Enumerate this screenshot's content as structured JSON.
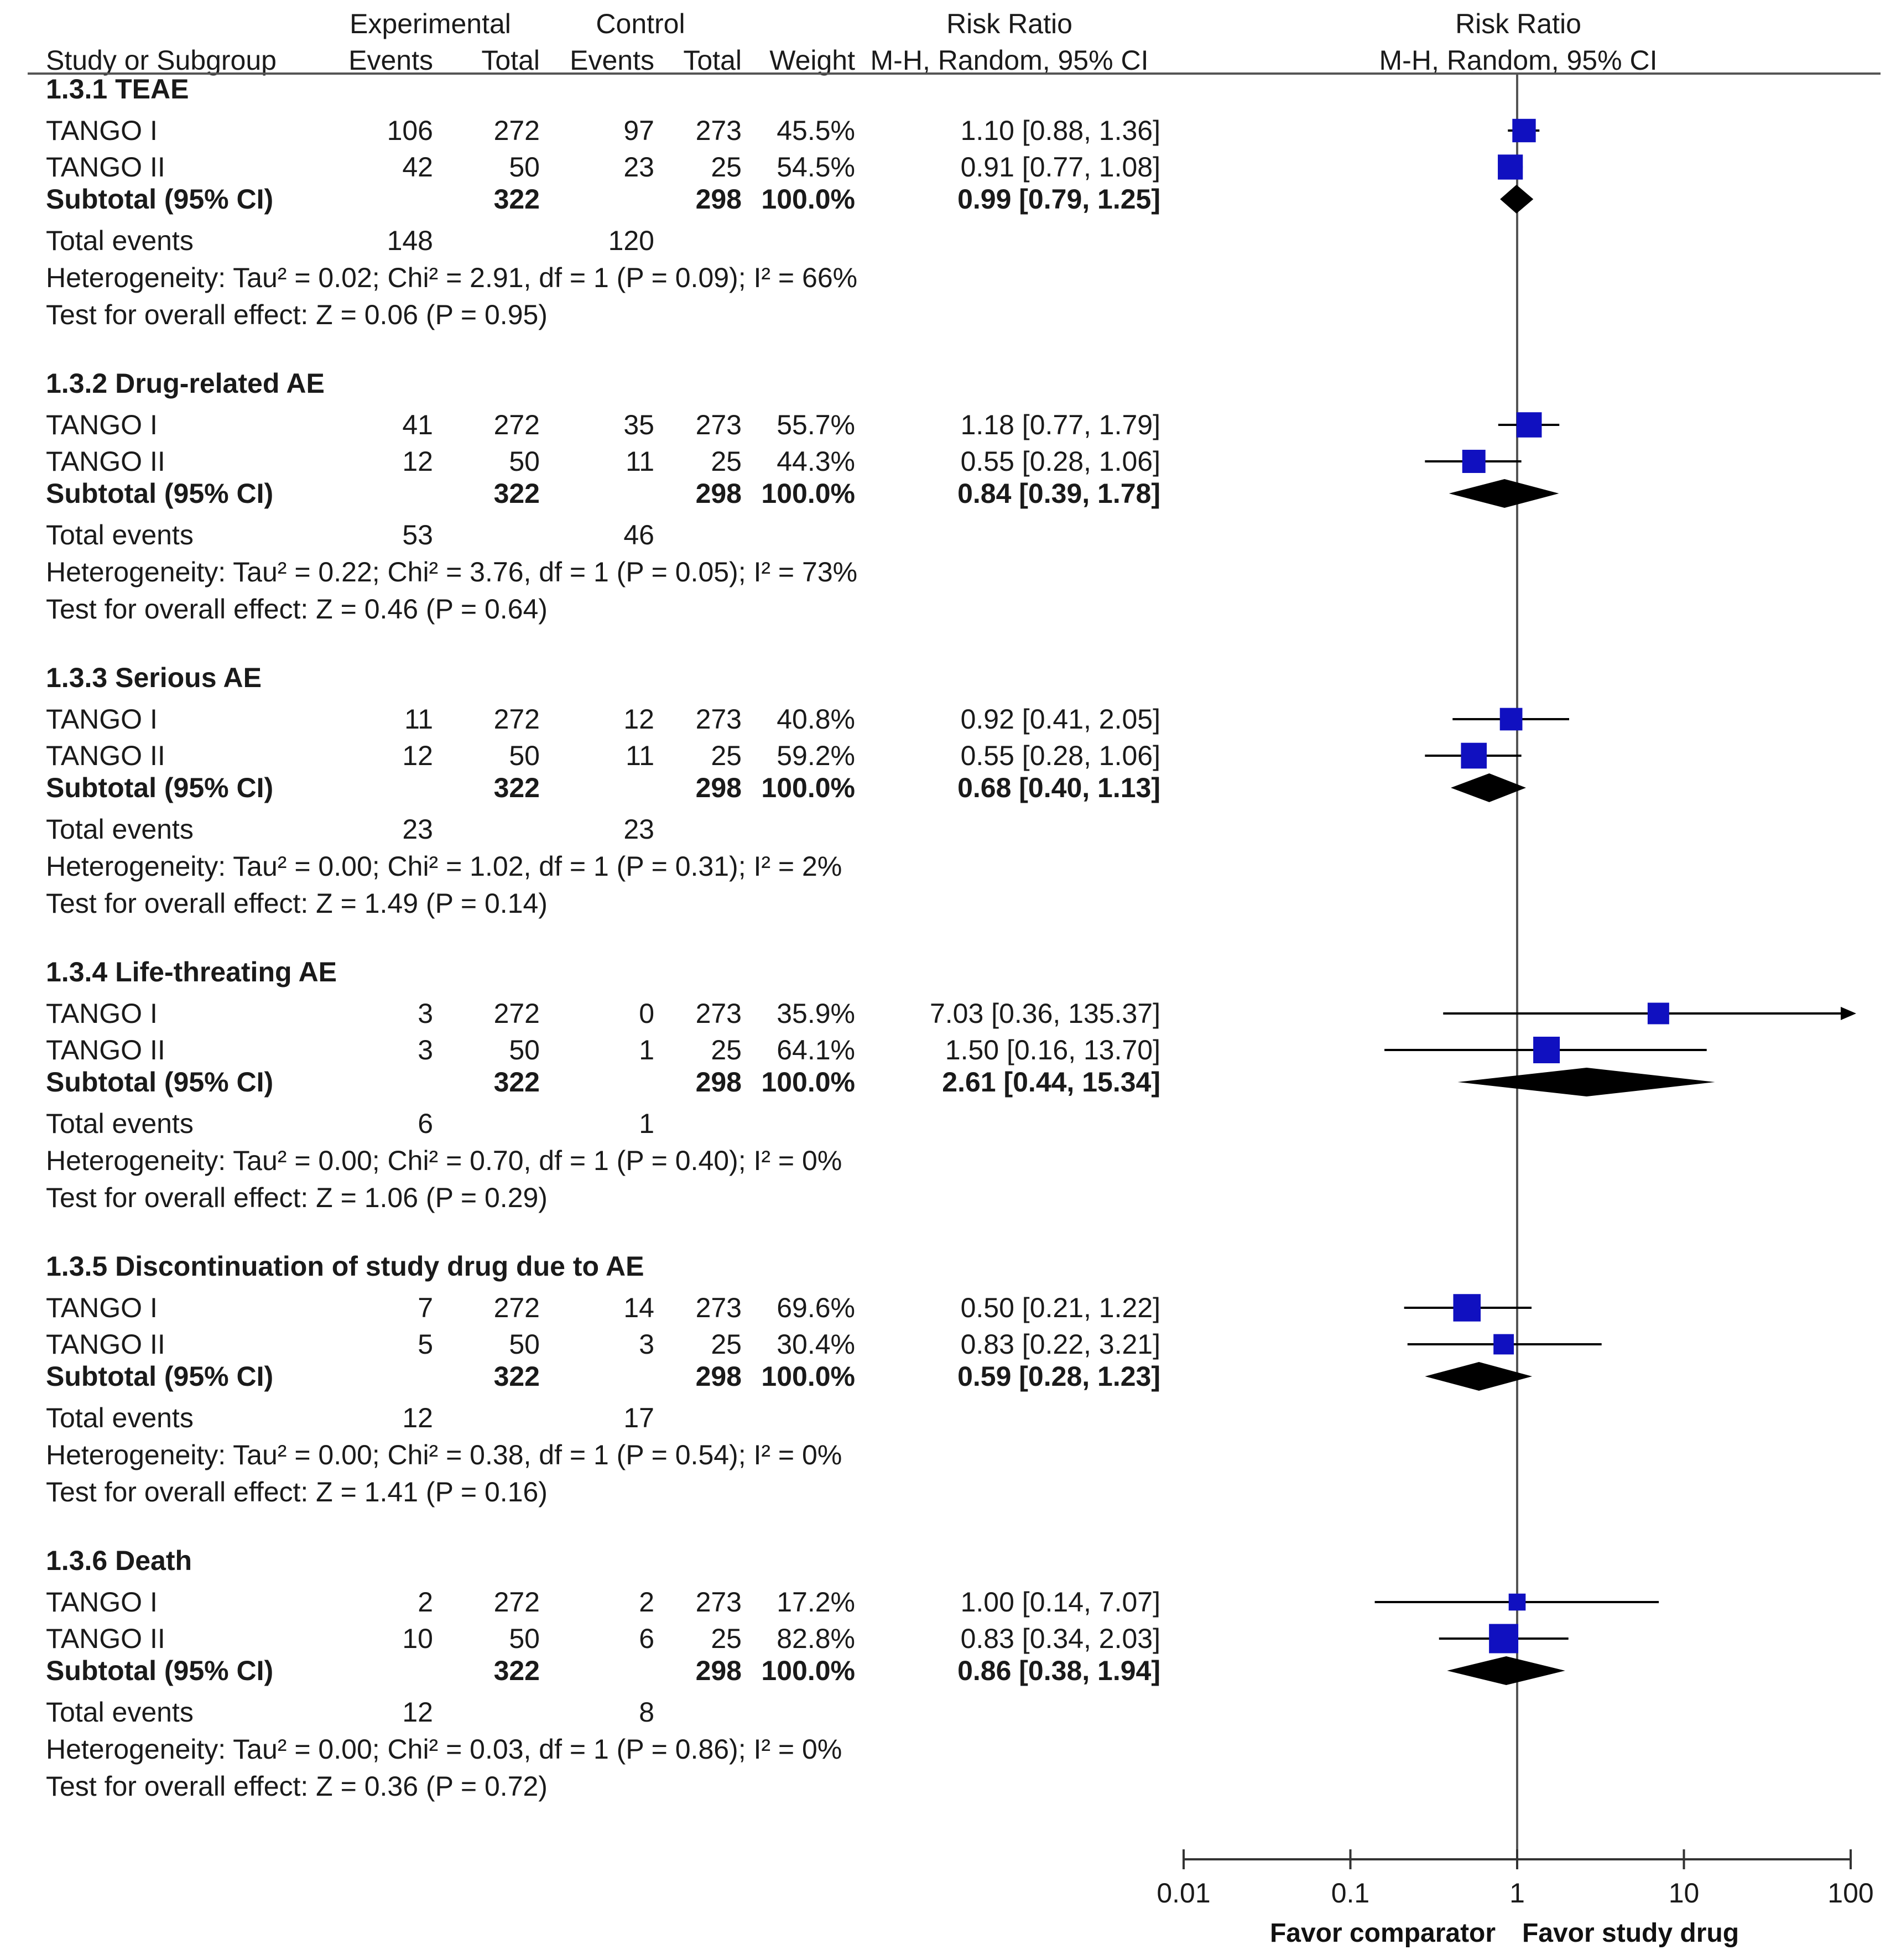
{
  "headers": {
    "experimental": "Experimental",
    "control": "Control",
    "risk_ratio_table": "Risk Ratio",
    "risk_ratio_plot": "Risk Ratio",
    "study_or_subgroup": "Study or Subgroup",
    "events_exp": "Events",
    "total_exp": "Total",
    "events_ctl": "Events",
    "total_ctl": "Total",
    "weight": "Weight",
    "method_table": "M-H, Random, 95% CI",
    "method_plot": "M-H, Random, 95% CI"
  },
  "groups": [
    {
      "title": "1.3.1 TEAE",
      "studies": [
        {
          "name": "TANGO I",
          "exp_events": "106",
          "exp_total": "272",
          "ctl_events": "97",
          "ctl_total": "273",
          "weight": "45.5%",
          "ci_text": "1.10 [0.88, 1.36]"
        },
        {
          "name": "TANGO II",
          "exp_events": "42",
          "exp_total": "50",
          "ctl_events": "23",
          "ctl_total": "25",
          "weight": "54.5%",
          "ci_text": "0.91 [0.77, 1.08]"
        }
      ],
      "subtotal": {
        "label": "Subtotal (95% CI)",
        "exp_total": "322",
        "ctl_total": "298",
        "weight": "100.0%",
        "ci_text": "0.99 [0.79, 1.25]"
      },
      "total_events": {
        "label": "Total events",
        "exp": "148",
        "ctl": "120"
      },
      "heterogeneity": "Heterogeneity: Tau² = 0.02; Chi² = 2.91, df = 1 (P = 0.09); I² = 66%",
      "overall": "Test for overall effect: Z = 0.06 (P = 0.95)"
    },
    {
      "title": "1.3.2 Drug-related AE",
      "studies": [
        {
          "name": "TANGO I",
          "exp_events": "41",
          "exp_total": "272",
          "ctl_events": "35",
          "ctl_total": "273",
          "weight": "55.7%",
          "ci_text": "1.18 [0.77, 1.79]"
        },
        {
          "name": "TANGO II",
          "exp_events": "12",
          "exp_total": "50",
          "ctl_events": "11",
          "ctl_total": "25",
          "weight": "44.3%",
          "ci_text": "0.55 [0.28, 1.06]"
        }
      ],
      "subtotal": {
        "label": "Subtotal (95% CI)",
        "exp_total": "322",
        "ctl_total": "298",
        "weight": "100.0%",
        "ci_text": "0.84 [0.39, 1.78]"
      },
      "total_events": {
        "label": "Total events",
        "exp": "53",
        "ctl": "46"
      },
      "heterogeneity": "Heterogeneity: Tau² = 0.22; Chi² = 3.76, df = 1 (P = 0.05); I² = 73%",
      "overall": "Test for overall effect: Z = 0.46 (P = 0.64)"
    },
    {
      "title": "1.3.3 Serious AE",
      "studies": [
        {
          "name": "TANGO I",
          "exp_events": "11",
          "exp_total": "272",
          "ctl_events": "12",
          "ctl_total": "273",
          "weight": "40.8%",
          "ci_text": "0.92 [0.41, 2.05]"
        },
        {
          "name": "TANGO II",
          "exp_events": "12",
          "exp_total": "50",
          "ctl_events": "11",
          "ctl_total": "25",
          "weight": "59.2%",
          "ci_text": "0.55 [0.28, 1.06]"
        }
      ],
      "subtotal": {
        "label": "Subtotal (95% CI)",
        "exp_total": "322",
        "ctl_total": "298",
        "weight": "100.0%",
        "ci_text": "0.68 [0.40, 1.13]"
      },
      "total_events": {
        "label": "Total events",
        "exp": "23",
        "ctl": "23"
      },
      "heterogeneity": "Heterogeneity: Tau² = 0.00; Chi² = 1.02, df = 1 (P = 0.31); I² = 2%",
      "overall": "Test for overall effect: Z = 1.49 (P = 0.14)"
    },
    {
      "title": "1.3.4 Life-threating AE",
      "studies": [
        {
          "name": "TANGO I",
          "exp_events": "3",
          "exp_total": "272",
          "ctl_events": "0",
          "ctl_total": "273",
          "weight": "35.9%",
          "ci_text": "7.03 [0.36, 135.37]"
        },
        {
          "name": "TANGO II",
          "exp_events": "3",
          "exp_total": "50",
          "ctl_events": "1",
          "ctl_total": "25",
          "weight": "64.1%",
          "ci_text": "1.50 [0.16, 13.70]"
        }
      ],
      "subtotal": {
        "label": "Subtotal (95% CI)",
        "exp_total": "322",
        "ctl_total": "298",
        "weight": "100.0%",
        "ci_text": "2.61 [0.44, 15.34]"
      },
      "total_events": {
        "label": "Total events",
        "exp": "6",
        "ctl": "1"
      },
      "heterogeneity": "Heterogeneity: Tau² = 0.00; Chi² = 0.70, df = 1 (P = 0.40); I² = 0%",
      "overall": "Test for overall effect: Z = 1.06 (P = 0.29)"
    },
    {
      "title": "1.3.5 Discontinuation of study drug due to AE",
      "studies": [
        {
          "name": "TANGO I",
          "exp_events": "7",
          "exp_total": "272",
          "ctl_events": "14",
          "ctl_total": "273",
          "weight": "69.6%",
          "ci_text": "0.50 [0.21, 1.22]"
        },
        {
          "name": "TANGO II",
          "exp_events": "5",
          "exp_total": "50",
          "ctl_events": "3",
          "ctl_total": "25",
          "weight": "30.4%",
          "ci_text": "0.83 [0.22, 3.21]"
        }
      ],
      "subtotal": {
        "label": "Subtotal (95% CI)",
        "exp_total": "322",
        "ctl_total": "298",
        "weight": "100.0%",
        "ci_text": "0.59 [0.28, 1.23]"
      },
      "total_events": {
        "label": "Total events",
        "exp": "12",
        "ctl": "17"
      },
      "heterogeneity": "Heterogeneity: Tau² = 0.00; Chi² = 0.38, df = 1 (P = 0.54); I² = 0%",
      "overall": "Test for overall effect: Z = 1.41 (P = 0.16)"
    },
    {
      "title": "1.3.6 Death",
      "studies": [
        {
          "name": "TANGO I",
          "exp_events": "2",
          "exp_total": "272",
          "ctl_events": "2",
          "ctl_total": "273",
          "weight": "17.2%",
          "ci_text": "1.00 [0.14, 7.07]"
        },
        {
          "name": "TANGO II",
          "exp_events": "10",
          "exp_total": "50",
          "ctl_events": "6",
          "ctl_total": "25",
          "weight": "82.8%",
          "ci_text": "0.83 [0.34, 2.03]"
        }
      ],
      "subtotal": {
        "label": "Subtotal (95% CI)",
        "exp_total": "322",
        "ctl_total": "298",
        "weight": "100.0%",
        "ci_text": "0.86 [0.38, 1.94]"
      },
      "total_events": {
        "label": "Total events",
        "exp": "12",
        "ctl": "8"
      },
      "heterogeneity": "Heterogeneity: Tau² = 0.00; Chi² = 0.03, df = 1 (P = 0.86); I² = 0%",
      "overall": "Test for overall effect: Z = 0.36 (P = 0.72)"
    }
  ],
  "axis": {
    "ticks": [
      0.01,
      0.1,
      1,
      10,
      100
    ],
    "tick_labels": [
      "0.01",
      "0.1",
      "1",
      "10",
      "100"
    ],
    "favor_left": "Favor comparator",
    "favor_right": "Favor study drug"
  },
  "colors": {
    "study_marker": "#1010c0",
    "summary_diamond": "#000000",
    "text": "#1a1a1a",
    "lines": "#000000"
  },
  "chart_data": {
    "type": "forest",
    "scale": "log",
    "xlim": [
      0.01,
      100
    ],
    "xlabel_left": "Favor comparator",
    "xlabel_right": "Favor study drug",
    "groups": [
      {
        "name": "1.3.1 TEAE",
        "studies": [
          {
            "name": "TANGO I",
            "rr": 1.1,
            "lo": 0.88,
            "hi": 1.36,
            "weight": 45.5
          },
          {
            "name": "TANGO II",
            "rr": 0.91,
            "lo": 0.77,
            "hi": 1.08,
            "weight": 54.5
          }
        ],
        "subtotal": {
          "rr": 0.99,
          "lo": 0.79,
          "hi": 1.25
        }
      },
      {
        "name": "1.3.2 Drug-related AE",
        "studies": [
          {
            "name": "TANGO I",
            "rr": 1.18,
            "lo": 0.77,
            "hi": 1.79,
            "weight": 55.7
          },
          {
            "name": "TANGO II",
            "rr": 0.55,
            "lo": 0.28,
            "hi": 1.06,
            "weight": 44.3
          }
        ],
        "subtotal": {
          "rr": 0.84,
          "lo": 0.39,
          "hi": 1.78
        }
      },
      {
        "name": "1.3.3 Serious AE",
        "studies": [
          {
            "name": "TANGO I",
            "rr": 0.92,
            "lo": 0.41,
            "hi": 2.05,
            "weight": 40.8
          },
          {
            "name": "TANGO II",
            "rr": 0.55,
            "lo": 0.28,
            "hi": 1.06,
            "weight": 59.2
          }
        ],
        "subtotal": {
          "rr": 0.68,
          "lo": 0.4,
          "hi": 1.13
        }
      },
      {
        "name": "1.3.4 Life-threating AE",
        "studies": [
          {
            "name": "TANGO I",
            "rr": 7.03,
            "lo": 0.36,
            "hi": 135.37,
            "weight": 35.9
          },
          {
            "name": "TANGO II",
            "rr": 1.5,
            "lo": 0.16,
            "hi": 13.7,
            "weight": 64.1
          }
        ],
        "subtotal": {
          "rr": 2.61,
          "lo": 0.44,
          "hi": 15.34
        }
      },
      {
        "name": "1.3.5 Discontinuation of study drug due to AE",
        "studies": [
          {
            "name": "TANGO I",
            "rr": 0.5,
            "lo": 0.21,
            "hi": 1.22,
            "weight": 69.6
          },
          {
            "name": "TANGO II",
            "rr": 0.83,
            "lo": 0.22,
            "hi": 3.21,
            "weight": 30.4
          }
        ],
        "subtotal": {
          "rr": 0.59,
          "lo": 0.28,
          "hi": 1.23
        }
      },
      {
        "name": "1.3.6 Death",
        "studies": [
          {
            "name": "TANGO I",
            "rr": 1.0,
            "lo": 0.14,
            "hi": 7.07,
            "weight": 17.2
          },
          {
            "name": "TANGO II",
            "rr": 0.83,
            "lo": 0.34,
            "hi": 2.03,
            "weight": 82.8
          }
        ],
        "subtotal": {
          "rr": 0.86,
          "lo": 0.38,
          "hi": 1.94
        }
      }
    ]
  }
}
